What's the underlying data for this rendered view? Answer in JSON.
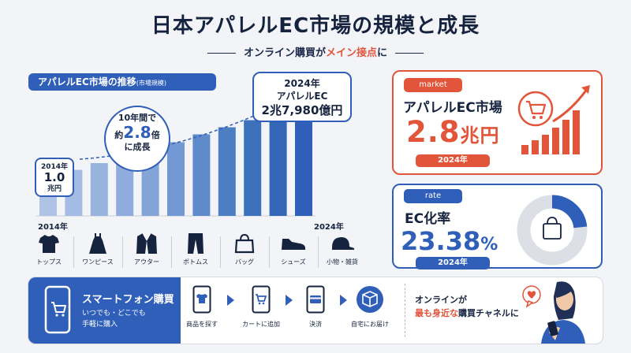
{
  "title": "日本アパレルEC市場の規模と成長",
  "subtitle": {
    "prefix": "オンライン購買が",
    "accent": "メイン接点",
    "suffix": "に"
  },
  "chart_panel": {
    "header": "アパレルEC市場の推移",
    "header_note": "(市場規模)",
    "callout_start": {
      "year": "2014年",
      "value": "1.0",
      "unit": "兆円"
    },
    "callout_end": {
      "year": "2024年",
      "line2": "アパレルEC",
      "value": "2兆7,980億円"
    },
    "growth": {
      "line1": "10年間で",
      "prefix": "約",
      "value": "2.8",
      "suffix": "倍",
      "line3": "に成長"
    },
    "year_start": "2014年",
    "year_end": "2024年"
  },
  "chart_data": {
    "type": "bar",
    "categories": [
      "2014年",
      "",
      "",
      "",
      "",
      "",
      "",
      "",
      "",
      "",
      "2024年"
    ],
    "values": [
      1.0,
      1.17,
      1.34,
      1.51,
      1.68,
      1.87,
      2.07,
      2.25,
      2.43,
      2.58,
      2.798
    ],
    "ylim": [
      0,
      3.2
    ],
    "colors": [
      "#aec3e6",
      "#a4bbe3",
      "#99b3df",
      "#8facdc",
      "#84a4d8",
      "#7299d3",
      "#5f8bcb",
      "#4d7ec3",
      "#3d71bb",
      "#3366b5",
      "#2f5fb8"
    ],
    "trend": "dashed-arrow"
  },
  "categories": [
    {
      "icon": "tshirt-icon",
      "label": "トップス"
    },
    {
      "icon": "dress-icon",
      "label": "ワンピース"
    },
    {
      "icon": "jacket-icon",
      "label": "アウター"
    },
    {
      "icon": "pants-icon",
      "label": "ボトムス"
    },
    {
      "icon": "bag-icon",
      "label": "バッグ"
    },
    {
      "icon": "shoe-icon",
      "label": "シューズ"
    },
    {
      "icon": "cap-icon",
      "label": "小物・雑貨"
    }
  ],
  "market_card": {
    "tag": "market",
    "label": "アパレルEC市場",
    "value": "2.8",
    "unit": "兆円",
    "year": "2024年"
  },
  "rate_card": {
    "tag": "rate",
    "label": "EC化率",
    "value": "23.38",
    "unit": "%",
    "year": "2024年",
    "ratio": 0.2338
  },
  "smartphone": {
    "title": "スマートフォン購買",
    "sub1": "いつでも・どこでも",
    "sub2": "手軽に購入"
  },
  "steps": [
    {
      "icon": "tshirt-on-phone-icon",
      "label": "商品を探す"
    },
    {
      "icon": "cart-on-phone-icon",
      "label": "カートに追加"
    },
    {
      "icon": "card-on-phone-icon",
      "label": "決済"
    },
    {
      "icon": "box-icon",
      "label": "自宅にお届け"
    }
  ],
  "tagline": {
    "line1": "オンラインが",
    "accent": "最も身近な",
    "line2_rest": "購買チャネルに"
  },
  "colors": {
    "accent_orange": "#e2553a",
    "brand_blue": "#2f5fb8",
    "navy": "#16233f"
  }
}
